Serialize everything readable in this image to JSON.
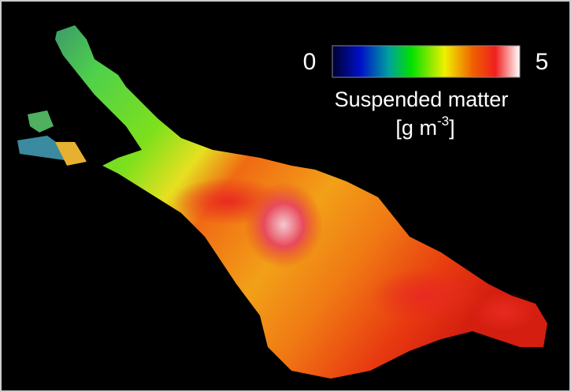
{
  "colorbar": {
    "min": 0,
    "max": 5,
    "label": "Suspended matter",
    "unit": {
      "prefix": "[g m",
      "superscript": "-3",
      "suffix": "]"
    }
  }
}
